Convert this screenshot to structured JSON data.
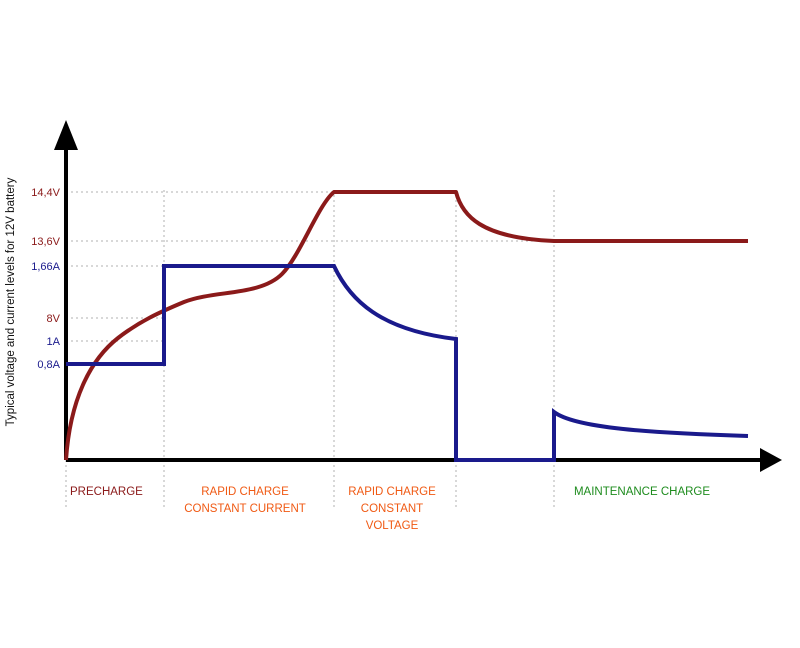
{
  "chart_data": {
    "type": "line",
    "title": "",
    "xlabel": "",
    "ylabel": "Typical voltage and current levels for 12V battery",
    "y_ticks": [
      {
        "label": "14,4V",
        "series": "voltage",
        "level": 14.4
      },
      {
        "label": "13,6V",
        "series": "voltage",
        "level": 13.6
      },
      {
        "label": "1,66A",
        "series": "current",
        "level": 1.66
      },
      {
        "label": "8V",
        "series": "voltage",
        "level": 8
      },
      {
        "label": "1A",
        "series": "current",
        "level": 1
      },
      {
        "label": "0,8A",
        "series": "current",
        "level": 0.8
      }
    ],
    "phases": [
      {
        "id": "precharge",
        "lines": [
          "PRECHARGE"
        ],
        "color": "#8b1a1a"
      },
      {
        "id": "rapid-cc",
        "lines": [
          "RAPID CHARGE",
          "CONSTANT CURRENT"
        ],
        "color": "#f05a14"
      },
      {
        "id": "rapid-cv",
        "lines": [
          "RAPID CHARGE",
          "CONSTANT",
          "VOLTAGE"
        ],
        "color": "#f05a14"
      },
      {
        "id": "blank",
        "lines": [],
        "color": "#000000"
      },
      {
        "id": "maintenance",
        "lines": [
          "MAINTENANCE CHARGE"
        ],
        "color": "#1e8c1e"
      }
    ],
    "series": [
      {
        "key": "voltage",
        "color": "#8b1a1a"
      },
      {
        "key": "current",
        "color": "#1a1a8c"
      }
    ],
    "grid": "dotted guide lines at tick levels and phase boundaries",
    "legend": "none"
  }
}
